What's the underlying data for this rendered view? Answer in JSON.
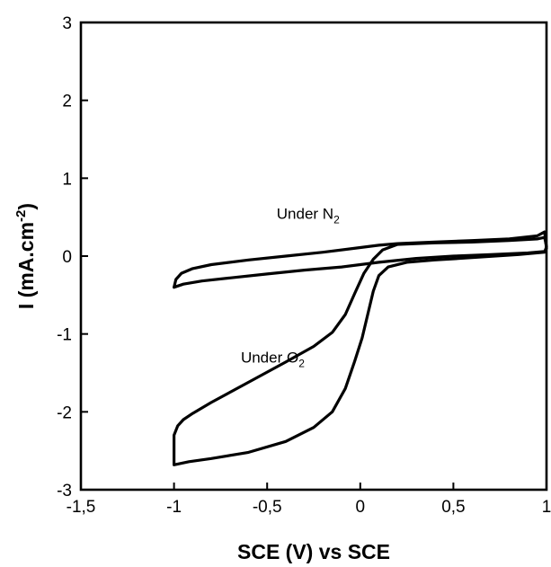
{
  "chart_data": {
    "type": "line",
    "title": "",
    "xlabel": "SCE (V) vs SCE",
    "ylabel": "I (mA.cm",
    "ylabel_sup": "-2",
    "ylabel_close": ")",
    "xlim": [
      -1.5,
      1.0
    ],
    "ylim": [
      -3,
      3
    ],
    "x_ticks": [
      -1.5,
      -1.0,
      -0.5,
      0.0,
      0.5,
      1.0
    ],
    "x_tick_labels": [
      "-1,5",
      "-1",
      "-0,5",
      "0",
      "0,5",
      "1"
    ],
    "y_ticks": [
      -3,
      -2,
      -1,
      0,
      1,
      2,
      3
    ],
    "y_tick_labels": [
      "-3",
      "-2",
      "-1",
      "0",
      "1",
      "2",
      "3"
    ],
    "grid": false,
    "annotations": [
      {
        "text": "Under N",
        "sub": "2",
        "x": -0.28,
        "y": 0.48
      },
      {
        "text": "Under O",
        "sub": "2",
        "x": -0.47,
        "y": -1.37
      }
    ],
    "series": [
      {
        "points": [
          [
            -1.0,
            -0.4
          ],
          [
            -0.99,
            -0.3
          ],
          [
            -0.96,
            -0.22
          ],
          [
            -0.9,
            -0.16
          ],
          [
            -0.8,
            -0.11
          ],
          [
            -0.6,
            -0.05
          ],
          [
            -0.4,
            0.0
          ],
          [
            -0.2,
            0.05
          ],
          [
            0.0,
            0.11
          ],
          [
            0.1,
            0.14
          ],
          [
            0.2,
            0.16
          ],
          [
            0.4,
            0.18
          ],
          [
            0.6,
            0.2
          ],
          [
            0.8,
            0.22
          ],
          [
            0.95,
            0.26
          ],
          [
            0.99,
            0.31
          ],
          [
            1.0,
            0.1
          ],
          [
            0.99,
            0.06
          ],
          [
            0.9,
            0.04
          ],
          [
            0.7,
            0.02
          ],
          [
            0.5,
            0.0
          ],
          [
            0.3,
            -0.03
          ],
          [
            0.1,
            -0.08
          ],
          [
            -0.1,
            -0.14
          ],
          [
            -0.3,
            -0.18
          ],
          [
            -0.5,
            -0.23
          ],
          [
            -0.7,
            -0.28
          ],
          [
            -0.85,
            -0.32
          ],
          [
            -0.95,
            -0.36
          ],
          [
            -1.0,
            -0.4
          ]
        ]
      },
      {
        "points": [
          [
            -1.0,
            -2.68
          ],
          [
            -1.0,
            -2.3
          ],
          [
            -0.98,
            -2.18
          ],
          [
            -0.95,
            -2.1
          ],
          [
            -0.9,
            -2.02
          ],
          [
            -0.8,
            -1.88
          ],
          [
            -0.6,
            -1.62
          ],
          [
            -0.4,
            -1.36
          ],
          [
            -0.25,
            -1.16
          ],
          [
            -0.15,
            -0.98
          ],
          [
            -0.08,
            -0.75
          ],
          [
            -0.03,
            -0.48
          ],
          [
            0.02,
            -0.22
          ],
          [
            0.07,
            -0.04
          ],
          [
            0.12,
            0.08
          ],
          [
            0.2,
            0.15
          ],
          [
            0.4,
            0.17
          ],
          [
            0.6,
            0.18
          ],
          [
            0.8,
            0.2
          ],
          [
            0.95,
            0.22
          ],
          [
            0.99,
            0.24
          ],
          [
            1.0,
            0.12
          ],
          [
            0.99,
            0.05
          ],
          [
            0.85,
            0.02
          ],
          [
            0.6,
            -0.02
          ],
          [
            0.4,
            -0.05
          ],
          [
            0.25,
            -0.08
          ],
          [
            0.15,
            -0.14
          ],
          [
            0.1,
            -0.25
          ],
          [
            0.07,
            -0.45
          ],
          [
            0.04,
            -0.75
          ],
          [
            0.01,
            -1.05
          ],
          [
            -0.03,
            -1.35
          ],
          [
            -0.08,
            -1.7
          ],
          [
            -0.15,
            -2.0
          ],
          [
            -0.25,
            -2.2
          ],
          [
            -0.4,
            -2.38
          ],
          [
            -0.6,
            -2.52
          ],
          [
            -0.8,
            -2.6
          ],
          [
            -0.92,
            -2.64
          ],
          [
            -1.0,
            -2.68
          ]
        ]
      }
    ]
  }
}
